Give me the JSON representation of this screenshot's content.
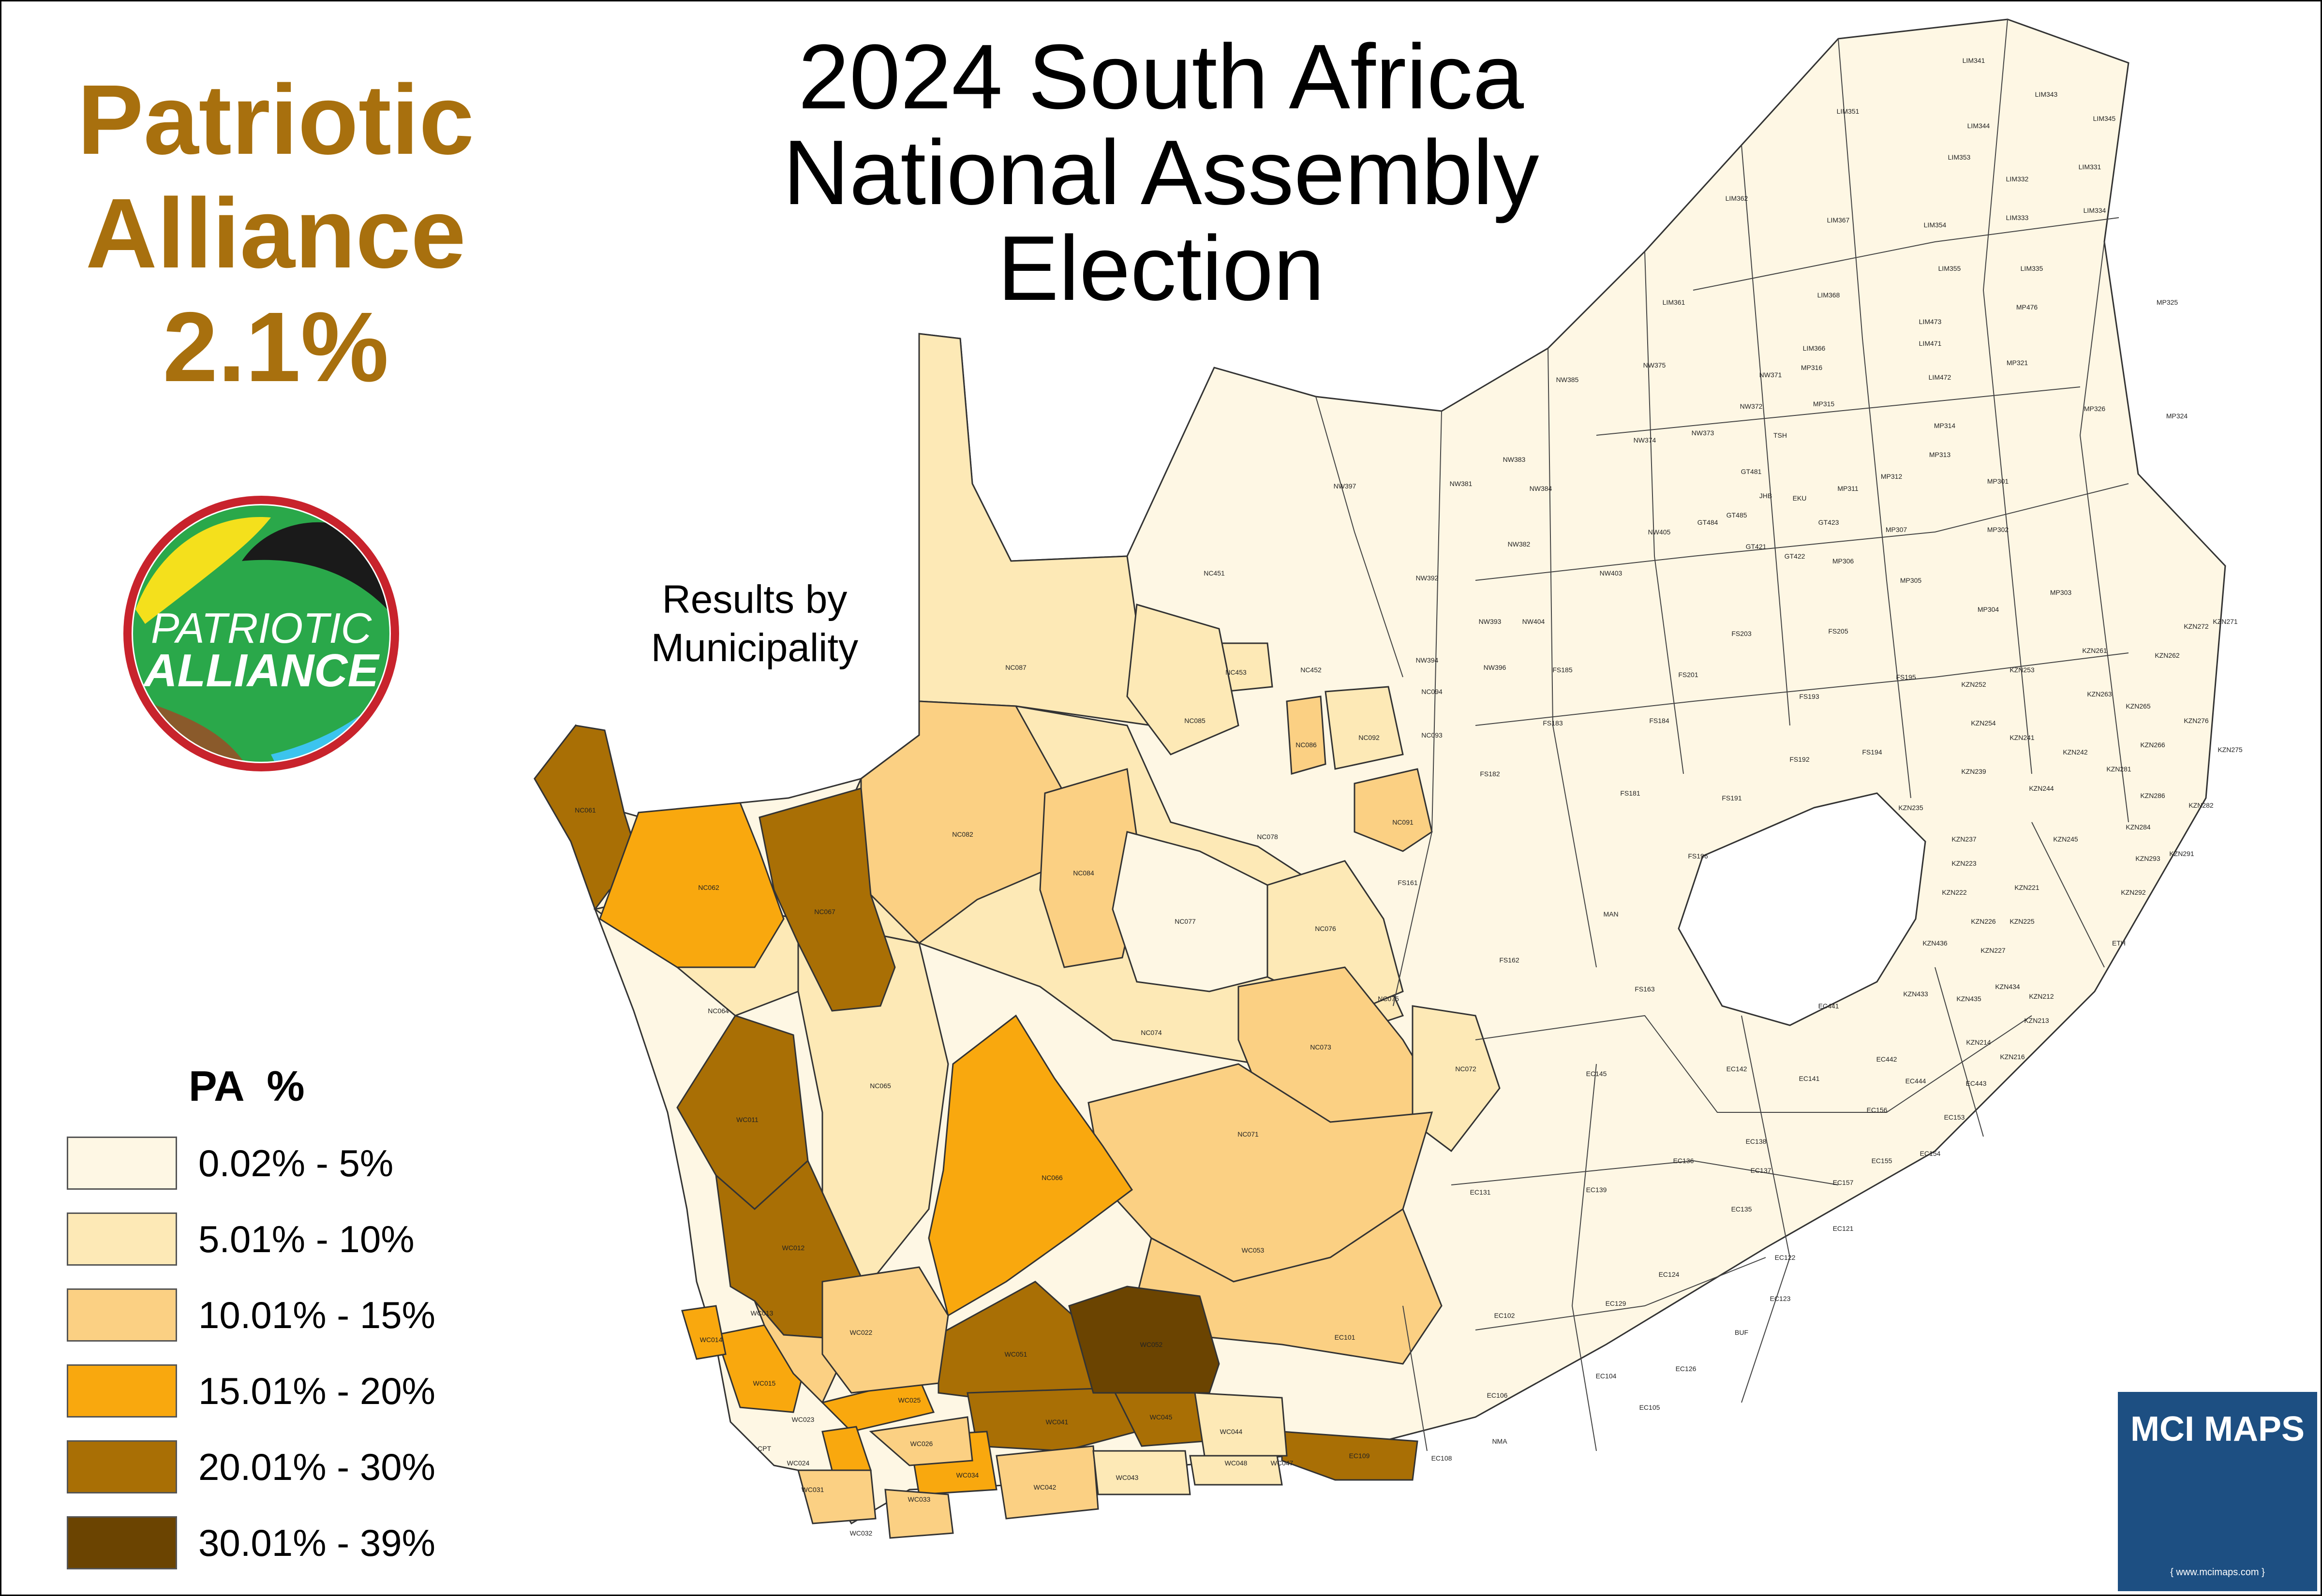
{
  "title_lines": [
    "2024 South Africa",
    "National Assembly",
    "Election"
  ],
  "party": {
    "name_lines": [
      "Patriotic",
      "Alliance"
    ],
    "share": "2.1%",
    "color": "#a8700e"
  },
  "subtitle_lines": [
    "Results by",
    "Municipality"
  ],
  "logo": {
    "text_line1": "PATRIOTIC",
    "text_line2": "ALLIANCE",
    "colors": {
      "ring": "#c8232c",
      "green": "#2aa84a",
      "yellow": "#f4e01c",
      "black": "#1a1a1a",
      "brown": "#8a5a2b",
      "cyan": "#3cc4ee"
    }
  },
  "legend": {
    "title": "PA  %",
    "items": [
      {
        "label": "0.02% - 5%",
        "color": "#fef7e4"
      },
      {
        "label": "5.01% - 10%",
        "color": "#fde9b6"
      },
      {
        "label": "10.01% - 15%",
        "color": "#fbd083"
      },
      {
        "label": "15.01% - 20%",
        "color": "#f9a80e"
      },
      {
        "label": "20.01% - 30%",
        "color": "#a96f05"
      },
      {
        "label": "30.01% - 39%",
        "color": "#6b4401"
      }
    ]
  },
  "branding": {
    "name": "MCI MAPS",
    "url": "{ www.mcimaps.com }",
    "color": "#1d4f82"
  },
  "municipalities": [
    {
      "code": "LIM341"
    },
    {
      "code": "LIM343"
    },
    {
      "code": "LIM345"
    },
    {
      "code": "LIM344"
    },
    {
      "code": "LIM351"
    },
    {
      "code": "LIM353"
    },
    {
      "code": "LIM332"
    },
    {
      "code": "LIM331"
    },
    {
      "code": "LIM362"
    },
    {
      "code": "LIM367"
    },
    {
      "code": "LIM354"
    },
    {
      "code": "LIM333"
    },
    {
      "code": "LIM334"
    },
    {
      "code": "LIM355"
    },
    {
      "code": "LIM335"
    },
    {
      "code": "LIM361"
    },
    {
      "code": "LIM368"
    },
    {
      "code": "LIM473"
    },
    {
      "code": "MP476"
    },
    {
      "code": "MP325"
    },
    {
      "code": "LIM366"
    },
    {
      "code": "LIM471"
    },
    {
      "code": "MP321"
    },
    {
      "code": "NW385"
    },
    {
      "code": "NW375"
    },
    {
      "code": "MP316"
    },
    {
      "code": "NW371"
    },
    {
      "code": "LIM472"
    },
    {
      "code": "MP324"
    },
    {
      "code": "NW372"
    },
    {
      "code": "MP315"
    },
    {
      "code": "MP326"
    },
    {
      "code": "NW373"
    },
    {
      "code": "NW374"
    },
    {
      "code": "TSH"
    },
    {
      "code": "MP314"
    },
    {
      "code": "NW383"
    },
    {
      "code": "GT481"
    },
    {
      "code": "MP313"
    },
    {
      "code": "MP312"
    },
    {
      "code": "NW397"
    },
    {
      "code": "NW381"
    },
    {
      "code": "NW384"
    },
    {
      "code": "JHB"
    },
    {
      "code": "EKU"
    },
    {
      "code": "MP311"
    },
    {
      "code": "MP301"
    },
    {
      "code": "GT485"
    },
    {
      "code": "GT484"
    },
    {
      "code": "GT423"
    },
    {
      "code": "NW405"
    },
    {
      "code": "NW382"
    },
    {
      "code": "GT421"
    },
    {
      "code": "MP307"
    },
    {
      "code": "MP302"
    },
    {
      "code": "NC451"
    },
    {
      "code": "NW392"
    },
    {
      "code": "NW403"
    },
    {
      "code": "GT422"
    },
    {
      "code": "MP306"
    },
    {
      "code": "MP305"
    },
    {
      "code": "MP303"
    },
    {
      "code": "NW393"
    },
    {
      "code": "NW404"
    },
    {
      "code": "FS203"
    },
    {
      "code": "FS205"
    },
    {
      "code": "MP304"
    },
    {
      "code": "KZN271"
    },
    {
      "code": "KZN272"
    },
    {
      "code": "NC453"
    },
    {
      "code": "NC452"
    },
    {
      "code": "NW394"
    },
    {
      "code": "NW396"
    },
    {
      "code": "FS185"
    },
    {
      "code": "FS201"
    },
    {
      "code": "FS195"
    },
    {
      "code": "KZN261"
    },
    {
      "code": "KZN262"
    },
    {
      "code": "NC087"
    },
    {
      "code": "NC094"
    },
    {
      "code": "FS193"
    },
    {
      "code": "KZN252"
    },
    {
      "code": "KZN253"
    },
    {
      "code": "KZN263"
    },
    {
      "code": "NC085"
    },
    {
      "code": "NC093"
    },
    {
      "code": "FS183"
    },
    {
      "code": "FS184"
    },
    {
      "code": "KZN254"
    },
    {
      "code": "KZN241"
    },
    {
      "code": "KZN265"
    },
    {
      "code": "KZN276"
    },
    {
      "code": "NC086"
    },
    {
      "code": "NC092"
    },
    {
      "code": "FS194"
    },
    {
      "code": "FS192"
    },
    {
      "code": "KZN242"
    },
    {
      "code": "KZN266"
    },
    {
      "code": "KZN275"
    },
    {
      "code": "NC061"
    },
    {
      "code": "FS182"
    },
    {
      "code": "KZN239"
    },
    {
      "code": "KZN281"
    },
    {
      "code": "NC091"
    },
    {
      "code": "FS181"
    },
    {
      "code": "FS191"
    },
    {
      "code": "KZN244"
    },
    {
      "code": "KZN286"
    },
    {
      "code": "KZN282"
    },
    {
      "code": "NC082"
    },
    {
      "code": "NC078"
    },
    {
      "code": "KZN235"
    },
    {
      "code": "KZN237"
    },
    {
      "code": "KZN245"
    },
    {
      "code": "KZN284"
    },
    {
      "code": "KZN291"
    },
    {
      "code": "NC084"
    },
    {
      "code": "FS196"
    },
    {
      "code": "KZN223"
    },
    {
      "code": "KZN293"
    },
    {
      "code": "NC062"
    },
    {
      "code": "NC067"
    },
    {
      "code": "FS161"
    },
    {
      "code": "KZN222"
    },
    {
      "code": "KZN221"
    },
    {
      "code": "KZN292"
    },
    {
      "code": "NC077"
    },
    {
      "code": "NC076"
    },
    {
      "code": "MAN"
    },
    {
      "code": "KZN226"
    },
    {
      "code": "KZN225"
    },
    {
      "code": "KZN227"
    },
    {
      "code": "ETH"
    },
    {
      "code": "FS162"
    },
    {
      "code": "KZN436"
    },
    {
      "code": "NC064"
    },
    {
      "code": "NC075"
    },
    {
      "code": "FS163"
    },
    {
      "code": "KZN434"
    },
    {
      "code": "KZN212"
    },
    {
      "code": "NC074"
    },
    {
      "code": "EC441"
    },
    {
      "code": "KZN433"
    },
    {
      "code": "KZN435"
    },
    {
      "code": "KZN213"
    },
    {
      "code": "NC065"
    },
    {
      "code": "NC073"
    },
    {
      "code": "KZN214"
    },
    {
      "code": "KZN216"
    },
    {
      "code": "NC072"
    },
    {
      "code": "EC142"
    },
    {
      "code": "EC442"
    },
    {
      "code": "EC141"
    },
    {
      "code": "EC444"
    },
    {
      "code": "EC443"
    },
    {
      "code": "EC145"
    },
    {
      "code": "WC011"
    },
    {
      "code": "NC071"
    },
    {
      "code": "EC156"
    },
    {
      "code": "EC153"
    },
    {
      "code": "NC066"
    },
    {
      "code": "EC138"
    },
    {
      "code": "EC154"
    },
    {
      "code": "EC136"
    },
    {
      "code": "EC137"
    },
    {
      "code": "EC157"
    },
    {
      "code": "EC155"
    },
    {
      "code": "EC131"
    },
    {
      "code": "EC139"
    },
    {
      "code": "EC135"
    },
    {
      "code": "EC121"
    },
    {
      "code": "WC012"
    },
    {
      "code": "WC053"
    },
    {
      "code": "EC122"
    },
    {
      "code": "EC124"
    },
    {
      "code": "EC123"
    },
    {
      "code": "WC013"
    },
    {
      "code": "EC129"
    },
    {
      "code": "WC022"
    },
    {
      "code": "EC102"
    },
    {
      "code": "BUF"
    },
    {
      "code": "EC101"
    },
    {
      "code": "WC051"
    },
    {
      "code": "WC052"
    },
    {
      "code": "WC014"
    },
    {
      "code": "EC104"
    },
    {
      "code": "EC126"
    },
    {
      "code": "WC015"
    },
    {
      "code": "EC106"
    },
    {
      "code": "WC025"
    },
    {
      "code": "EC105"
    },
    {
      "code": "WC023"
    },
    {
      "code": "WC041"
    },
    {
      "code": "WC045"
    },
    {
      "code": "WC044"
    },
    {
      "code": "NMA"
    },
    {
      "code": "WC026"
    },
    {
      "code": "CPT"
    },
    {
      "code": "EC109"
    },
    {
      "code": "EC108"
    },
    {
      "code": "WC024"
    },
    {
      "code": "WC048"
    },
    {
      "code": "WC047"
    },
    {
      "code": "WC034"
    },
    {
      "code": "WC043"
    },
    {
      "code": "WC042"
    },
    {
      "code": "WC031"
    },
    {
      "code": "WC033"
    },
    {
      "code": "WC032"
    }
  ]
}
